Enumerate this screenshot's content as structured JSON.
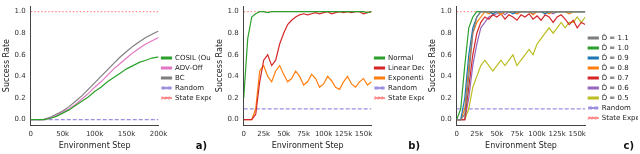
{
  "chart_data": [
    {
      "type": "line",
      "annotation": "a)",
      "x_label": "Environment Step",
      "y_label": "Success Rate",
      "x": [
        0,
        10000,
        20000,
        30000,
        40000,
        50000,
        60000,
        70000,
        80000,
        90000,
        100000,
        110000,
        120000,
        130000,
        140000,
        150000,
        160000,
        170000,
        180000,
        190000,
        200000
      ],
      "xlim": [
        0,
        200000
      ],
      "xticks": [
        0,
        {
          "value": 50000,
          "label": "50k"
        },
        {
          "value": 100000,
          "label": "100k"
        },
        {
          "value": 150000,
          "label": "150k"
        },
        {
          "value": 200000,
          "label": "200k"
        }
      ],
      "ylim": [
        -0.05,
        1.05
      ],
      "yticks": [
        {
          "value": 0,
          "label": "0.0"
        },
        0.2,
        0.4,
        0.6,
        0.8,
        {
          "value": 1,
          "label": "1.0"
        }
      ],
      "grid": false,
      "legend": "right",
      "series": [
        {
          "name": "COSIL (Ours)",
          "color": "#2ca02c",
          "line_style": "solid",
          "values": [
            0,
            0,
            0,
            0.01,
            0.03,
            0.06,
            0.09,
            0.13,
            0.17,
            0.21,
            0.26,
            0.3,
            0.35,
            0.39,
            0.43,
            0.47,
            0.5,
            0.53,
            0.55,
            0.57,
            0.58
          ]
        },
        {
          "name": "ADV-Off",
          "color": "#e377c2",
          "line_style": "solid",
          "values": [
            0,
            0,
            0,
            0.01,
            0.04,
            0.07,
            0.1,
            0.14,
            0.19,
            0.24,
            0.3,
            0.35,
            0.41,
            0.47,
            0.52,
            0.57,
            0.62,
            0.66,
            0.7,
            0.73,
            0.76
          ]
        },
        {
          "name": "BC",
          "color": "#7f7f7f",
          "line_style": "solid",
          "values": [
            0,
            0,
            0,
            0.02,
            0.05,
            0.08,
            0.12,
            0.17,
            0.22,
            0.28,
            0.34,
            0.4,
            0.46,
            0.52,
            0.58,
            0.63,
            0.68,
            0.72,
            0.76,
            0.79,
            0.82
          ]
        },
        {
          "name": "Random",
          "color": "#9d8fe0",
          "line_style": "dashed",
          "values": [
            0,
            0,
            0,
            0,
            0,
            0,
            0,
            0,
            0,
            0,
            0,
            0,
            0,
            0,
            0,
            0,
            0,
            0,
            0,
            0,
            0
          ]
        },
        {
          "name": "State Expert",
          "color": "#ff8c8c",
          "line_style": "dotted",
          "values": [
            1,
            1,
            1,
            1,
            1,
            1,
            1,
            1,
            1,
            1,
            1,
            1,
            1,
            1,
            1,
            1,
            1,
            1,
            1,
            1,
            1
          ]
        }
      ]
    },
    {
      "type": "line",
      "annotation": "b)",
      "x_label": "Environment Step",
      "y_label": "Success Rate",
      "x": [
        0,
        5000,
        10000,
        15000,
        20000,
        25000,
        30000,
        35000,
        40000,
        45000,
        50000,
        55000,
        60000,
        65000,
        70000,
        75000,
        80000,
        85000,
        90000,
        95000,
        100000,
        105000,
        110000,
        115000,
        120000,
        125000,
        130000,
        135000,
        140000,
        145000,
        150000,
        155000,
        160000
      ],
      "xlim": [
        0,
        160000
      ],
      "xticks": [
        0,
        {
          "value": 25000,
          "label": "25k"
        },
        {
          "value": 50000,
          "label": "50k"
        },
        {
          "value": 75000,
          "label": "75k"
        },
        {
          "value": 100000,
          "label": "100k"
        },
        {
          "value": 125000,
          "label": "125k"
        },
        {
          "value": 150000,
          "label": "150k"
        }
      ],
      "ylim": [
        -0.05,
        1.05
      ],
      "yticks": [
        {
          "value": 0,
          "label": "0.0"
        },
        0.2,
        0.4,
        0.6,
        0.8,
        {
          "value": 1,
          "label": "1.0"
        }
      ],
      "grid": false,
      "legend": "right",
      "series": [
        {
          "name": "Normal",
          "color": "#2ca02c",
          "line_style": "solid",
          "values": [
            0.2,
            0.75,
            0.95,
            0.98,
            1,
            1,
            0.99,
            1,
            1,
            1,
            1,
            1,
            1,
            1,
            1,
            1,
            1,
            1,
            1,
            1,
            1,
            1,
            1,
            1,
            1,
            1,
            1,
            1,
            1,
            1,
            1,
            0.99,
            1
          ]
        },
        {
          "name": "Linear Decay",
          "color": "#d62728",
          "line_style": "solid",
          "values": [
            0,
            0,
            0,
            0.05,
            0.35,
            0.55,
            0.6,
            0.5,
            0.55,
            0.7,
            0.8,
            0.88,
            0.92,
            0.95,
            0.97,
            0.98,
            0.97,
            0.98,
            0.99,
            0.98,
            0.99,
            1,
            0.98,
            0.99,
            1,
            0.99,
            1,
            0.99,
            1,
            1,
            0.98,
            0.99,
            1
          ]
        },
        {
          "name": "Exponential Decay",
          "color": "#ff7f0e",
          "line_style": "solid",
          "values": [
            0,
            0,
            0,
            0.1,
            0.45,
            0.5,
            0.4,
            0.35,
            0.45,
            0.5,
            0.42,
            0.35,
            0.38,
            0.45,
            0.4,
            0.32,
            0.35,
            0.42,
            0.38,
            0.3,
            0.33,
            0.4,
            0.36,
            0.3,
            0.28,
            0.35,
            0.4,
            0.33,
            0.3,
            0.35,
            0.38,
            0.32,
            0.35
          ]
        },
        {
          "name": "Random",
          "color": "#9d8fe0",
          "line_style": "dashed",
          "values": [
            0.1,
            0.1,
            0.1,
            0.1,
            0.1,
            0.1,
            0.1,
            0.1,
            0.1,
            0.1,
            0.1,
            0.1,
            0.1,
            0.1,
            0.1,
            0.1,
            0.1,
            0.1,
            0.1,
            0.1,
            0.1,
            0.1,
            0.1,
            0.1,
            0.1,
            0.1,
            0.1,
            0.1,
            0.1,
            0.1,
            0.1,
            0.1,
            0.1
          ]
        },
        {
          "name": "State Expert",
          "color": "#ff8c8c",
          "line_style": "dotted",
          "values": [
            1,
            1,
            1,
            1,
            1,
            1,
            1,
            1,
            1,
            1,
            1,
            1,
            1,
            1,
            1,
            1,
            1,
            1,
            1,
            1,
            1,
            1,
            1,
            1,
            1,
            1,
            1,
            1,
            1,
            1,
            1,
            1,
            1
          ]
        }
      ]
    },
    {
      "type": "line",
      "annotation": "c)",
      "x_label": "Environment Step",
      "y_label": "Success Rate",
      "x": [
        0,
        5000,
        10000,
        15000,
        20000,
        25000,
        30000,
        35000,
        40000,
        45000,
        50000,
        55000,
        60000,
        65000,
        70000,
        75000,
        80000,
        85000,
        90000,
        95000,
        100000,
        105000,
        110000,
        115000,
        120000,
        125000,
        130000,
        135000,
        140000,
        145000,
        150000,
        155000,
        160000
      ],
      "xlim": [
        0,
        160000
      ],
      "xticks": [
        0,
        {
          "value": 25000,
          "label": "25k"
        },
        {
          "value": 50000,
          "label": "50k"
        },
        {
          "value": 75000,
          "label": "75k"
        },
        {
          "value": 100000,
          "label": "100k"
        },
        {
          "value": 125000,
          "label": "125k"
        },
        {
          "value": 150000,
          "label": "150k"
        }
      ],
      "ylim": [
        -0.05,
        1.05
      ],
      "yticks": [
        {
          "value": 0,
          "label": "0.0"
        },
        0.2,
        0.4,
        0.6,
        0.8,
        {
          "value": 1,
          "label": "1.0"
        }
      ],
      "grid": false,
      "legend": "right",
      "series": [
        {
          "name": "D̂ = 1.1",
          "color": "#7f7f7f",
          "line_style": "solid",
          "values": [
            0,
            0,
            0.05,
            0.4,
            0.8,
            0.95,
            1,
            1,
            1,
            1,
            1,
            1,
            1,
            1,
            1,
            1,
            1,
            1,
            1,
            1,
            1,
            1,
            1,
            1,
            1,
            1,
            1,
            1,
            1,
            1,
            1,
            1,
            1
          ]
        },
        {
          "name": "D̂ = 1.0",
          "color": "#2ca02c",
          "line_style": "solid",
          "values": [
            0,
            0.1,
            0.5,
            0.85,
            0.95,
            1,
            1,
            1,
            1,
            1,
            1,
            1,
            1,
            1,
            1,
            1,
            1,
            1,
            1,
            1,
            1,
            1,
            1,
            1,
            1,
            1,
            1,
            1,
            1,
            1,
            1,
            1,
            1
          ]
        },
        {
          "name": "D̂ = 0.9",
          "color": "#1f77b4",
          "line_style": "solid",
          "values": [
            0,
            0,
            0.2,
            0.6,
            0.85,
            0.95,
            1,
            1,
            1,
            0.98,
            1,
            1,
            1,
            1,
            0.98,
            1,
            1,
            1,
            1,
            1,
            1,
            1,
            0.98,
            1,
            1,
            1,
            1,
            1,
            1,
            1,
            1,
            1,
            1
          ]
        },
        {
          "name": "D̂ = 0.8",
          "color": "#ff7f0e",
          "line_style": "solid",
          "values": [
            0,
            0,
            0.1,
            0.5,
            0.8,
            0.9,
            0.95,
            1,
            0.98,
            1,
            1,
            0.97,
            1,
            1,
            1,
            0.98,
            1,
            1,
            1,
            0.97,
            1,
            1,
            1,
            0.98,
            1,
            1,
            1,
            1,
            0.98,
            1,
            1,
            1,
            1
          ]
        },
        {
          "name": "D̂ = 0.7",
          "color": "#d62728",
          "line_style": "solid",
          "values": [
            0,
            0,
            0,
            0.3,
            0.6,
            0.8,
            0.9,
            0.95,
            0.93,
            0.97,
            0.95,
            0.98,
            0.93,
            0.97,
            0.95,
            0.92,
            0.97,
            0.95,
            0.98,
            0.93,
            0.96,
            0.92,
            0.97,
            0.95,
            0.9,
            0.95,
            0.97,
            0.93,
            0.88,
            0.92,
            0.85,
            0.9,
            0.88
          ]
        },
        {
          "name": "D̂ = 0.6",
          "color": "#9467bd",
          "line_style": "solid",
          "values": [
            0,
            0,
            0,
            0.2,
            0.5,
            0.7,
            0.85,
            0.9,
            0.95,
            0.97,
            0.98,
            1,
            0.97,
            1,
            1,
            0.98,
            1,
            1,
            1,
            0.98,
            1,
            1,
            1,
            1,
            0.98,
            1,
            1,
            1,
            1,
            1,
            1,
            1,
            1
          ]
        },
        {
          "name": "D̂ = 0.5",
          "color": "#bcbd22",
          "line_style": "solid",
          "values": [
            0,
            0,
            0,
            0.1,
            0.3,
            0.4,
            0.5,
            0.55,
            0.5,
            0.45,
            0.5,
            0.55,
            0.5,
            0.55,
            0.6,
            0.5,
            0.55,
            0.6,
            0.65,
            0.6,
            0.7,
            0.75,
            0.8,
            0.85,
            0.8,
            0.85,
            0.9,
            0.85,
            0.9,
            0.9,
            0.95,
            0.9,
            0.95
          ]
        },
        {
          "name": "Random",
          "color": "#9d8fe0",
          "line_style": "dashed",
          "values": [
            0.1,
            0.1,
            0.1,
            0.1,
            0.1,
            0.1,
            0.1,
            0.1,
            0.1,
            0.1,
            0.1,
            0.1,
            0.1,
            0.1,
            0.1,
            0.1,
            0.1,
            0.1,
            0.1,
            0.1,
            0.1,
            0.1,
            0.1,
            0.1,
            0.1,
            0.1,
            0.1,
            0.1,
            0.1,
            0.1,
            0.1,
            0.1,
            0.1
          ]
        },
        {
          "name": "State Expert",
          "color": "#ff8c8c",
          "line_style": "dotted",
          "values": [
            1,
            1,
            1,
            1,
            1,
            1,
            1,
            1,
            1,
            1,
            1,
            1,
            1,
            1,
            1,
            1,
            1,
            1,
            1,
            1,
            1,
            1,
            1,
            1,
            1,
            1,
            1,
            1,
            1,
            1,
            1,
            1,
            1
          ]
        }
      ]
    }
  ]
}
